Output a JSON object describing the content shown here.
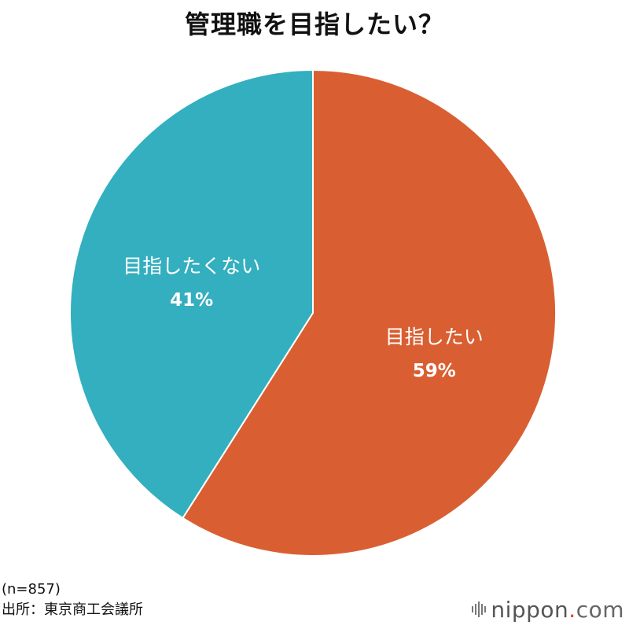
{
  "chart_data": {
    "type": "pie",
    "title": "管理職を目指したい？",
    "slices": [
      {
        "name": "目指したい",
        "value": 59,
        "label": "59%",
        "color": "#d95f32"
      },
      {
        "name": "目指したくない",
        "value": 41,
        "label": "41%",
        "color": "#33afbf"
      }
    ],
    "start": "12 o'clock",
    "direction": "clockwise"
  },
  "footer": {
    "sample": "(n=857)",
    "source": "出所：東京商工会議所"
  },
  "brand": {
    "name": "nippon",
    "dot": ".",
    "tld": "com"
  }
}
